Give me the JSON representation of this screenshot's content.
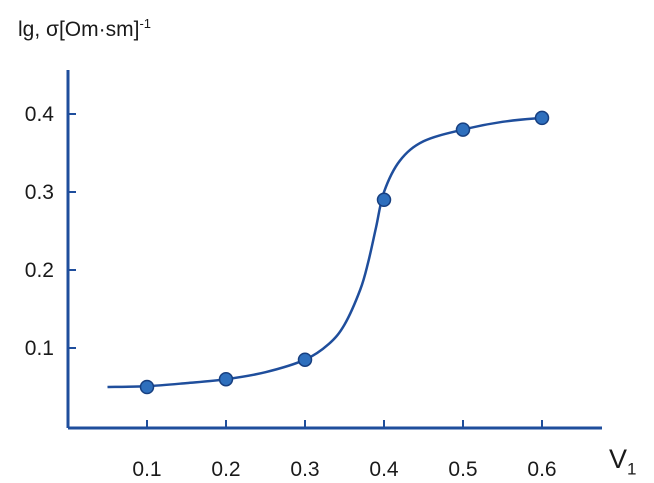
{
  "chart_data": {
    "type": "line",
    "ylabel": {
      "main": "lg, σ[Om·sm]",
      "sup": "-1"
    },
    "xlabel": {
      "main": "V",
      "sub": "1"
    },
    "x_ticks": [
      "0.1",
      "0.2",
      "0.3",
      "0.4",
      "0.5",
      "0.6"
    ],
    "y_ticks": [
      "0.1",
      "0.2",
      "0.3",
      "0.4"
    ],
    "xlim": [
      0.0,
      0.65
    ],
    "ylim": [
      0.0,
      0.45
    ],
    "series": [
      {
        "points": [
          {
            "x": 0.1,
            "y": 0.05
          },
          {
            "x": 0.2,
            "y": 0.06
          },
          {
            "x": 0.3,
            "y": 0.085
          },
          {
            "x": 0.4,
            "y": 0.29
          },
          {
            "x": 0.5,
            "y": 0.38
          },
          {
            "x": 0.6,
            "y": 0.395
          }
        ],
        "curve": [
          [
            0.05,
            0.05
          ],
          [
            0.1,
            0.051
          ],
          [
            0.15,
            0.055
          ],
          [
            0.2,
            0.06
          ],
          [
            0.25,
            0.069
          ],
          [
            0.3,
            0.085
          ],
          [
            0.33,
            0.105
          ],
          [
            0.35,
            0.13
          ],
          [
            0.37,
            0.175
          ],
          [
            0.38,
            0.21
          ],
          [
            0.39,
            0.255
          ],
          [
            0.4,
            0.3
          ],
          [
            0.42,
            0.34
          ],
          [
            0.45,
            0.365
          ],
          [
            0.5,
            0.38
          ],
          [
            0.55,
            0.39
          ],
          [
            0.6,
            0.395
          ]
        ]
      }
    ],
    "colors": {
      "axis": "#1f4e9c",
      "line": "#1f4e9c",
      "marker": "#2e6fbd"
    },
    "grid": false
  }
}
